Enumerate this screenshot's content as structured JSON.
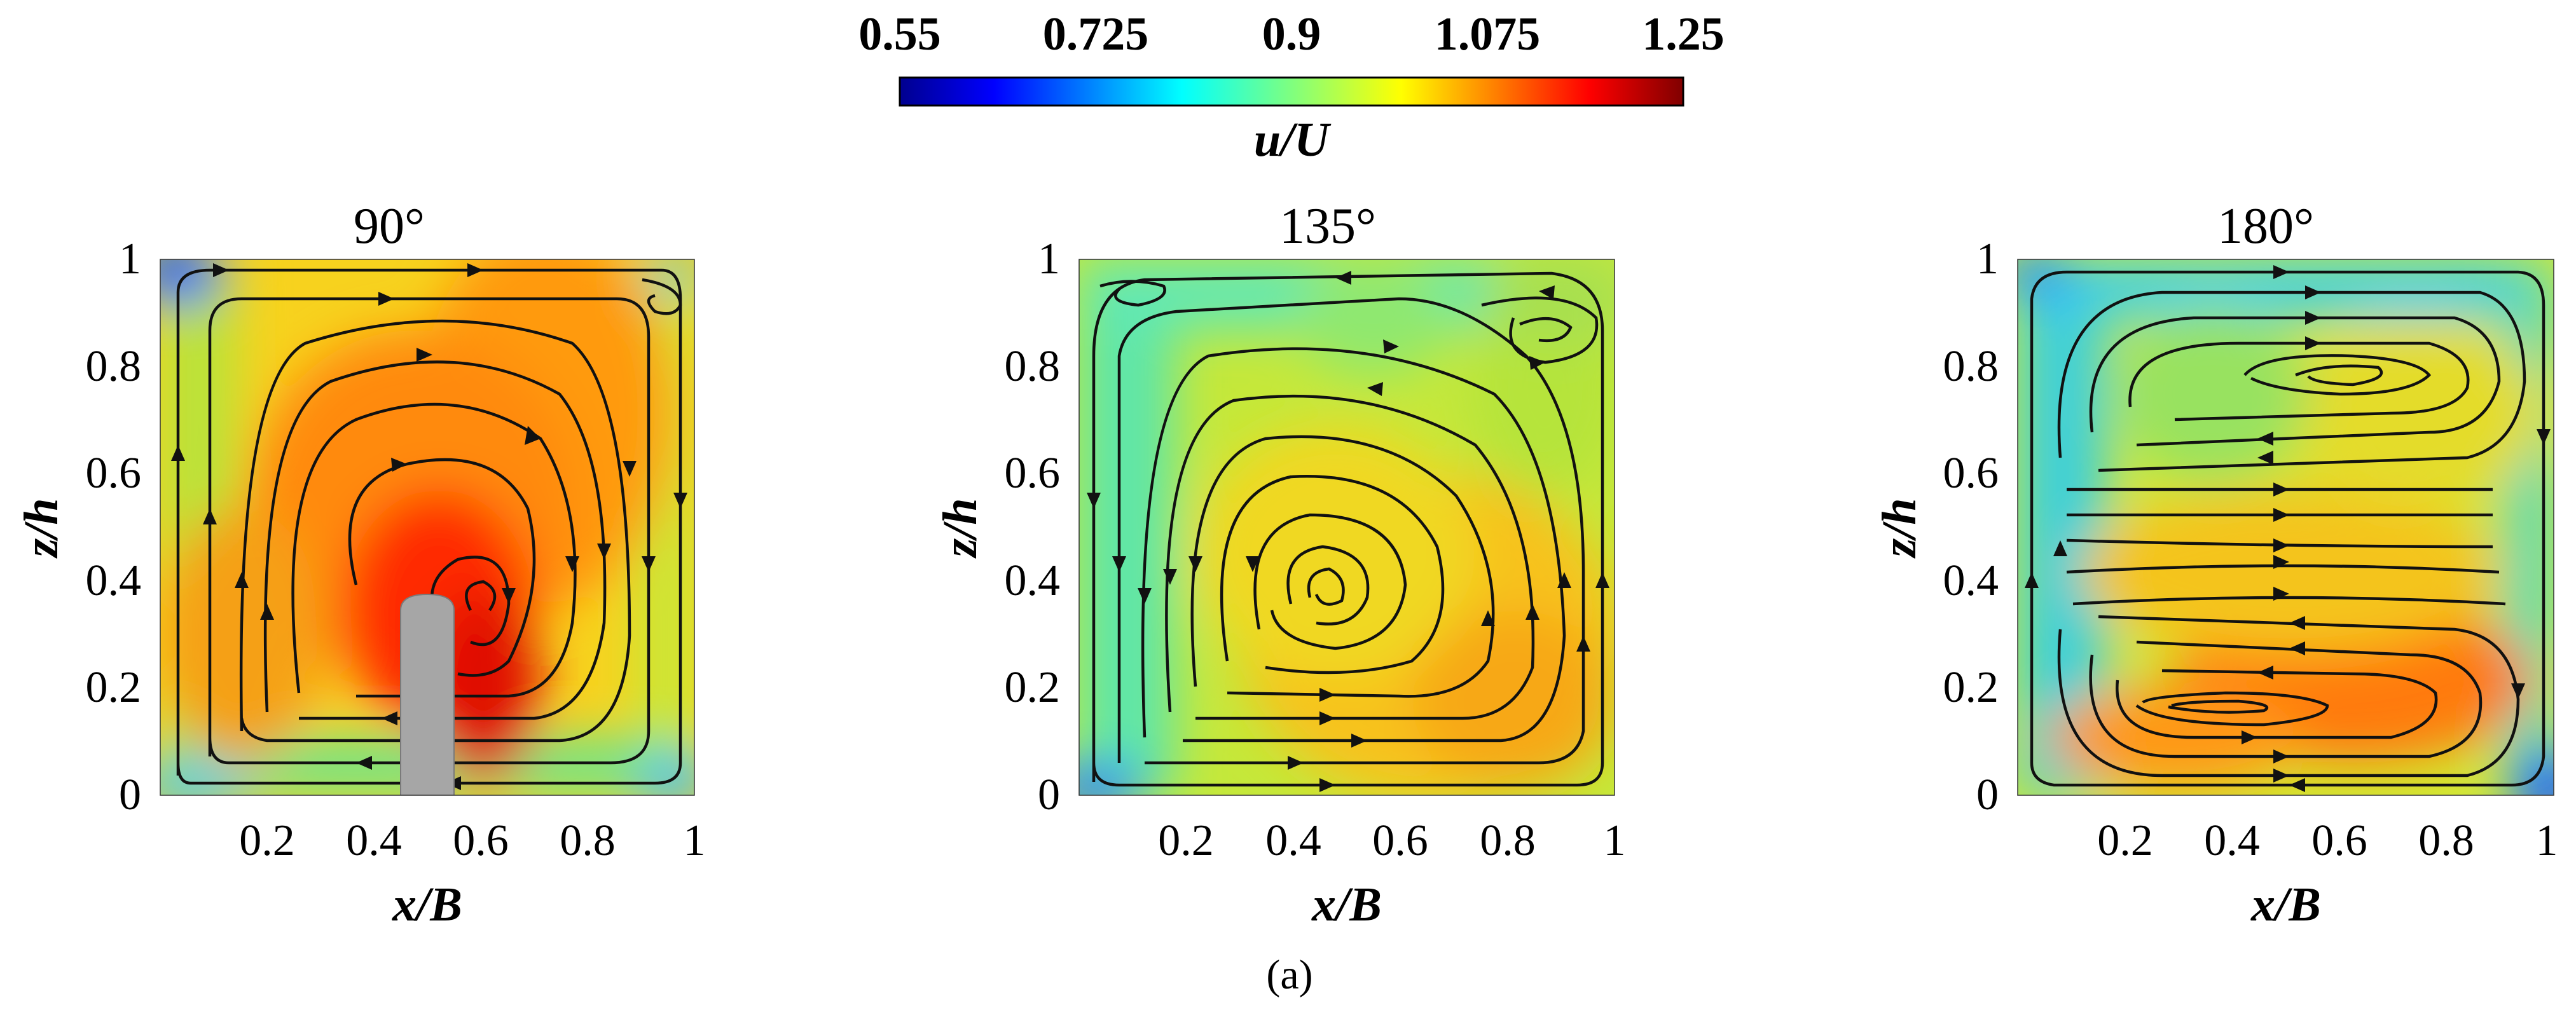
{
  "colorbar": {
    "label": "u/U",
    "ticks": [
      "0.55",
      "0.725",
      "0.9",
      "1.075",
      "1.25"
    ],
    "range": [
      0.55,
      1.25
    ],
    "colormap": "jet"
  },
  "caption": "(a)",
  "chart_data": [
    {
      "type": "heatmap",
      "title": "90°",
      "xlabel": "x/B",
      "ylabel": "z/h",
      "xlim": [
        0,
        1
      ],
      "ylim": [
        0,
        1
      ],
      "xticks": [
        "0.2",
        "0.4",
        "0.6",
        "0.8",
        "1"
      ],
      "yticks": [
        "0",
        "0.2",
        "0.4",
        "0.6",
        "0.8",
        "1"
      ],
      "field": "u/U",
      "obstacle": {
        "x": [
          0.45,
          0.55
        ],
        "z": [
          0,
          0.37
        ],
        "color": "#a6a6a6"
      },
      "vortex_centers": [
        {
          "x": 0.58,
          "z": 0.32
        },
        {
          "x": 0.95,
          "z": 0.93
        }
      ],
      "approx_values": [
        {
          "x": 0.5,
          "z": 0.45,
          "u": 1.25
        },
        {
          "x": 0.6,
          "z": 0.3,
          "u": 1.2
        },
        {
          "x": 0.75,
          "z": 0.75,
          "u": 1.1
        },
        {
          "x": 0.3,
          "z": 0.8,
          "u": 1.0
        },
        {
          "x": 0.1,
          "z": 0.2,
          "u": 1.0
        },
        {
          "x": 0.0,
          "z": 1.0,
          "u": 0.6
        },
        {
          "x": 0.95,
          "z": 0.02,
          "u": 0.85
        }
      ]
    },
    {
      "type": "heatmap",
      "title": "135°",
      "xlabel": "x/B",
      "ylabel": "z/h",
      "xlim": [
        0,
        1
      ],
      "ylim": [
        0,
        1
      ],
      "xticks": [
        "0.2",
        "0.4",
        "0.6",
        "0.8",
        "1"
      ],
      "yticks": [
        "0",
        "0.2",
        "0.4",
        "0.6",
        "0.8",
        "1"
      ],
      "field": "u/U",
      "vortex_centers": [
        {
          "x": 0.38,
          "z": 0.33
        },
        {
          "x": 0.82,
          "z": 0.9
        },
        {
          "x": 0.07,
          "z": 0.93
        }
      ],
      "approx_values": [
        {
          "x": 0.65,
          "z": 0.2,
          "u": 1.1
        },
        {
          "x": 0.4,
          "z": 0.35,
          "u": 1.02
        },
        {
          "x": 0.05,
          "z": 0.6,
          "u": 0.85
        },
        {
          "x": 0.5,
          "z": 0.8,
          "u": 0.95
        },
        {
          "x": 0.85,
          "z": 0.9,
          "u": 0.95
        },
        {
          "x": 0.0,
          "z": 0.0,
          "u": 0.7
        }
      ]
    },
    {
      "type": "heatmap",
      "title": "180°",
      "xlabel": "x/B",
      "ylabel": "z/h",
      "xlim": [
        0,
        1
      ],
      "ylim": [
        0,
        1
      ],
      "xticks": [
        "0.2",
        "0.4",
        "0.6",
        "0.8",
        "1"
      ],
      "yticks": [
        "0",
        "0.2",
        "0.4",
        "0.6",
        "0.8",
        "1"
      ],
      "field": "u/U",
      "vortex_centers": [
        {
          "x": 0.68,
          "z": 0.89
        },
        {
          "x": 0.25,
          "z": 0.1
        }
      ],
      "approx_values": [
        {
          "x": 0.65,
          "z": 0.2,
          "u": 1.15
        },
        {
          "x": 0.3,
          "z": 0.1,
          "u": 1.1
        },
        {
          "x": 0.7,
          "z": 0.88,
          "u": 1.0
        },
        {
          "x": 0.4,
          "z": 0.5,
          "u": 1.02
        },
        {
          "x": 0.05,
          "z": 0.7,
          "u": 0.78
        },
        {
          "x": 0.92,
          "z": 0.5,
          "u": 0.95
        },
        {
          "x": 1.0,
          "z": 0.05,
          "u": 0.6
        }
      ]
    }
  ]
}
